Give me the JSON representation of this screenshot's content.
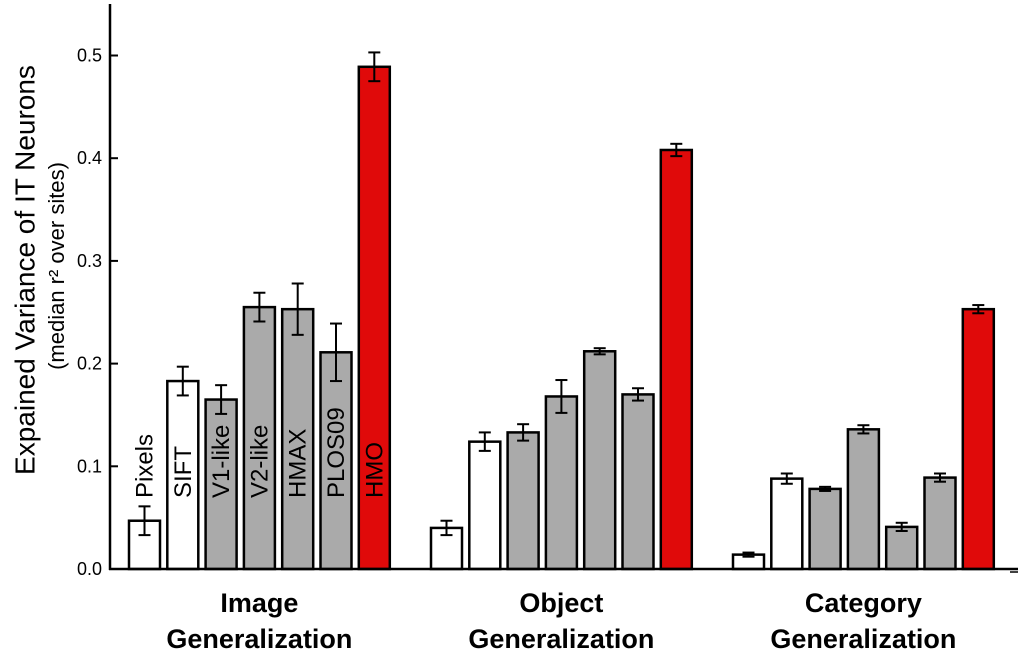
{
  "chart_data": {
    "type": "bar",
    "ylabel": "Expained Variance of IT Neurons",
    "ylabel_sub": "(median r² over sites)",
    "ylim": [
      0,
      0.55
    ],
    "yticks": [
      "0.0",
      "0.1",
      "0.2",
      "0.3",
      "0.4",
      "0.5"
    ],
    "grid": false,
    "categories": [
      {
        "line1": "Image",
        "line2": "Generalization"
      },
      {
        "line1": "Object",
        "line2": "Generalization"
      },
      {
        "line1": "Category",
        "line2": "Generalization"
      }
    ],
    "series": [
      {
        "name": "Pixels",
        "color": "#ffffff",
        "values": [
          0.047,
          0.04,
          0.014
        ],
        "errors": [
          0.014,
          0.007,
          0.002
        ]
      },
      {
        "name": "SIFT",
        "color": "#ffffff",
        "values": [
          0.183,
          0.124,
          0.088
        ],
        "errors": [
          0.014,
          0.009,
          0.005
        ]
      },
      {
        "name": "V1-like",
        "color": "#aaaaaa",
        "values": [
          0.165,
          0.133,
          0.078
        ],
        "errors": [
          0.014,
          0.008,
          0.002
        ]
      },
      {
        "name": "V2-like",
        "color": "#aaaaaa",
        "values": [
          0.255,
          0.168,
          0.136
        ],
        "errors": [
          0.014,
          0.016,
          0.004
        ]
      },
      {
        "name": "HMAX",
        "color": "#aaaaaa",
        "values": [
          0.253,
          0.212,
          0.041
        ],
        "errors": [
          0.025,
          0.003,
          0.004
        ]
      },
      {
        "name": "PLOS09",
        "color": "#aaaaaa",
        "values": [
          0.211,
          0.17,
          0.089
        ],
        "errors": [
          0.028,
          0.006,
          0.004
        ]
      },
      {
        "name": "HMO",
        "color": "#e00a0a",
        "values": [
          0.489,
          0.408,
          0.253
        ],
        "errors": [
          0.014,
          0.006,
          0.004
        ]
      }
    ]
  }
}
